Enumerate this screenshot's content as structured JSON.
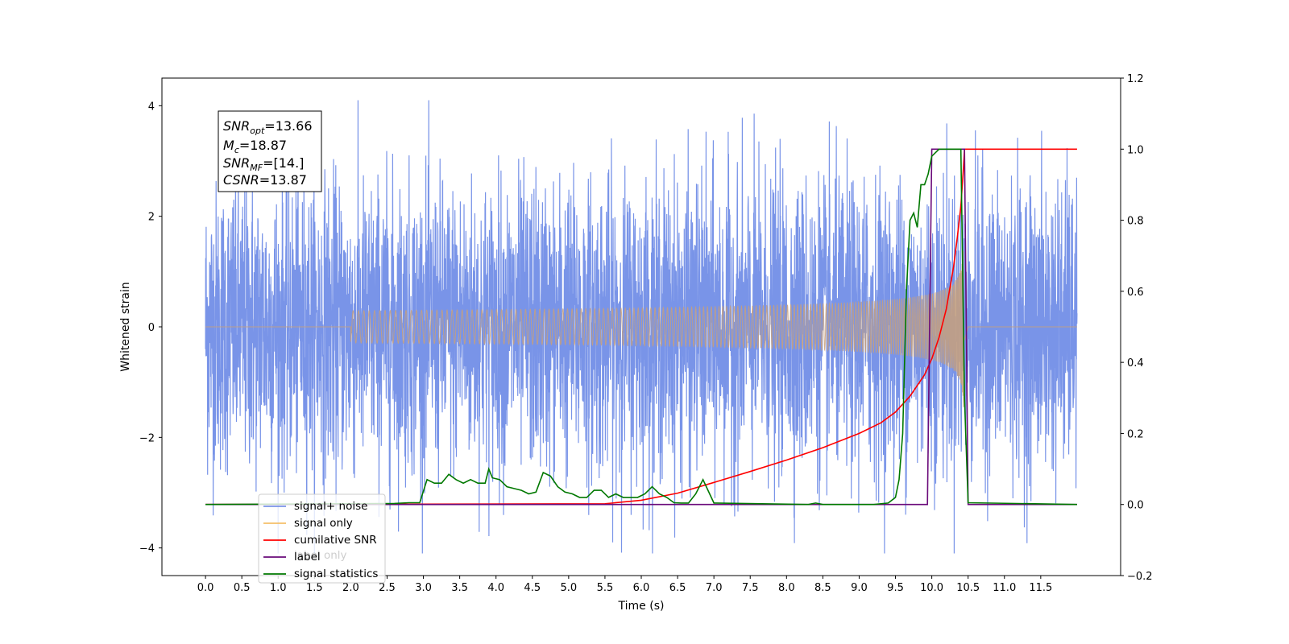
{
  "chart_data": {
    "type": "line",
    "xlabel": "Time (s)",
    "ylabel": "Whitened strain",
    "xlim": [
      -0.6,
      12.6
    ],
    "ylim": [
      -4.5,
      4.5
    ],
    "y2lim": [
      -0.2,
      1.2
    ],
    "xticks": [
      "0.0",
      "0.5",
      "1.0",
      "1.5",
      "2.0",
      "2.5",
      "3.0",
      "3.5",
      "4.0",
      "4.5",
      "5.0",
      "5.5",
      "6.0",
      "6.5",
      "7.0",
      "7.5",
      "8.0",
      "8.5",
      "9.0",
      "9.5",
      "10.0",
      "10.5",
      "11.0",
      "11.5"
    ],
    "yticks": [
      "4",
      "2",
      "0",
      "−2",
      "−4"
    ],
    "y2ticks": [
      "1.2",
      "1.0",
      "0.8",
      "0.6",
      "0.4",
      "0.2",
      "0.0",
      "−0.2"
    ],
    "annotation": {
      "lines": [
        {
          "sym": "SNR",
          "sub": "opt",
          "value": "=13.66"
        },
        {
          "sym": "M",
          "sub": "c",
          "value": "=18.87"
        },
        {
          "sym": "SNR",
          "sub": "MF",
          "value": "=[14.]"
        },
        {
          "sym": "CSNR",
          "sub": "",
          "value": "=13.87"
        }
      ]
    },
    "legend": {
      "placement": "lower-left",
      "entries": [
        {
          "label": "signal+ noise",
          "color": "#7994e8"
        },
        {
          "label": "signal only",
          "color": "#f5bf6a"
        },
        {
          "label": "cumilative SNR",
          "color": "#ff0000"
        },
        {
          "label": "label",
          "color": "#6a0a7a"
        },
        {
          "label": "signal statistics",
          "color": "#007800"
        }
      ],
      "ghost_label": "label only"
    },
    "noise": {
      "name": "signal+ noise",
      "color": "#7994e8",
      "x_range": [
        0.0,
        12.0
      ],
      "amplitude": 1.3,
      "max_abs": 4.1
    },
    "signal": {
      "name": "signal only",
      "color": "#c8a07a",
      "x_start": 2.0,
      "x_merger": 10.45,
      "amp_at_merger": 3.0
    },
    "cumulative_snr": {
      "name": "cumilative SNR",
      "axis": "right",
      "color": "#ff0000",
      "x": [
        0.0,
        5.5,
        6.0,
        6.5,
        7.0,
        7.5,
        8.0,
        8.5,
        9.0,
        9.3,
        9.5,
        9.7,
        9.9,
        10.0,
        10.1,
        10.2,
        10.3,
        10.35,
        10.4,
        10.43,
        10.45,
        12.0
      ],
      "y": [
        0.0,
        0.002,
        0.012,
        0.032,
        0.062,
        0.093,
        0.125,
        0.16,
        0.2,
        0.23,
        0.26,
        0.305,
        0.365,
        0.41,
        0.47,
        0.55,
        0.67,
        0.75,
        0.84,
        0.93,
        1.0,
        1.0
      ]
    },
    "label_series": {
      "name": "label",
      "axis": "right",
      "color": "#6a0a7a",
      "x": [
        0.0,
        9.94,
        10.0,
        10.45,
        10.5,
        12.0
      ],
      "y": [
        0.0,
        0.0,
        1.0,
        1.0,
        0.0,
        0.0
      ]
    },
    "signal_statistics": {
      "name": "signal statistics",
      "axis": "right",
      "color": "#007800",
      "x": [
        0.0,
        2.6,
        2.8,
        2.95,
        3.05,
        3.15,
        3.25,
        3.35,
        3.45,
        3.55,
        3.65,
        3.75,
        3.85,
        3.9,
        3.95,
        4.05,
        4.15,
        4.25,
        4.35,
        4.45,
        4.55,
        4.65,
        4.75,
        4.85,
        4.95,
        5.05,
        5.15,
        5.25,
        5.35,
        5.45,
        5.55,
        5.65,
        5.75,
        5.85,
        5.95,
        6.05,
        6.15,
        6.25,
        6.35,
        6.45,
        6.55,
        6.65,
        6.75,
        6.85,
        7.0,
        8.3,
        8.4,
        8.5,
        9.2,
        9.4,
        9.5,
        9.55,
        9.6,
        9.65,
        9.7,
        9.75,
        9.8,
        9.85,
        9.9,
        9.95,
        10.0,
        10.1,
        10.2,
        10.3,
        10.35,
        10.4,
        10.45,
        10.5,
        12.0
      ],
      "y": [
        0.0,
        0.003,
        0.005,
        0.005,
        0.07,
        0.06,
        0.06,
        0.085,
        0.07,
        0.06,
        0.07,
        0.06,
        0.06,
        0.1,
        0.075,
        0.07,
        0.05,
        0.045,
        0.04,
        0.03,
        0.035,
        0.09,
        0.08,
        0.05,
        0.035,
        0.03,
        0.02,
        0.02,
        0.04,
        0.04,
        0.02,
        0.03,
        0.02,
        0.02,
        0.02,
        0.03,
        0.05,
        0.03,
        0.02,
        0.005,
        0.004,
        0.004,
        0.03,
        0.07,
        0.004,
        0.0,
        0.004,
        0.0,
        0.0,
        0.004,
        0.02,
        0.07,
        0.2,
        0.6,
        0.8,
        0.82,
        0.78,
        0.9,
        0.9,
        0.93,
        0.98,
        1.0,
        1.0,
        1.0,
        1.0,
        1.0,
        0.3,
        0.005,
        0.0
      ]
    }
  }
}
